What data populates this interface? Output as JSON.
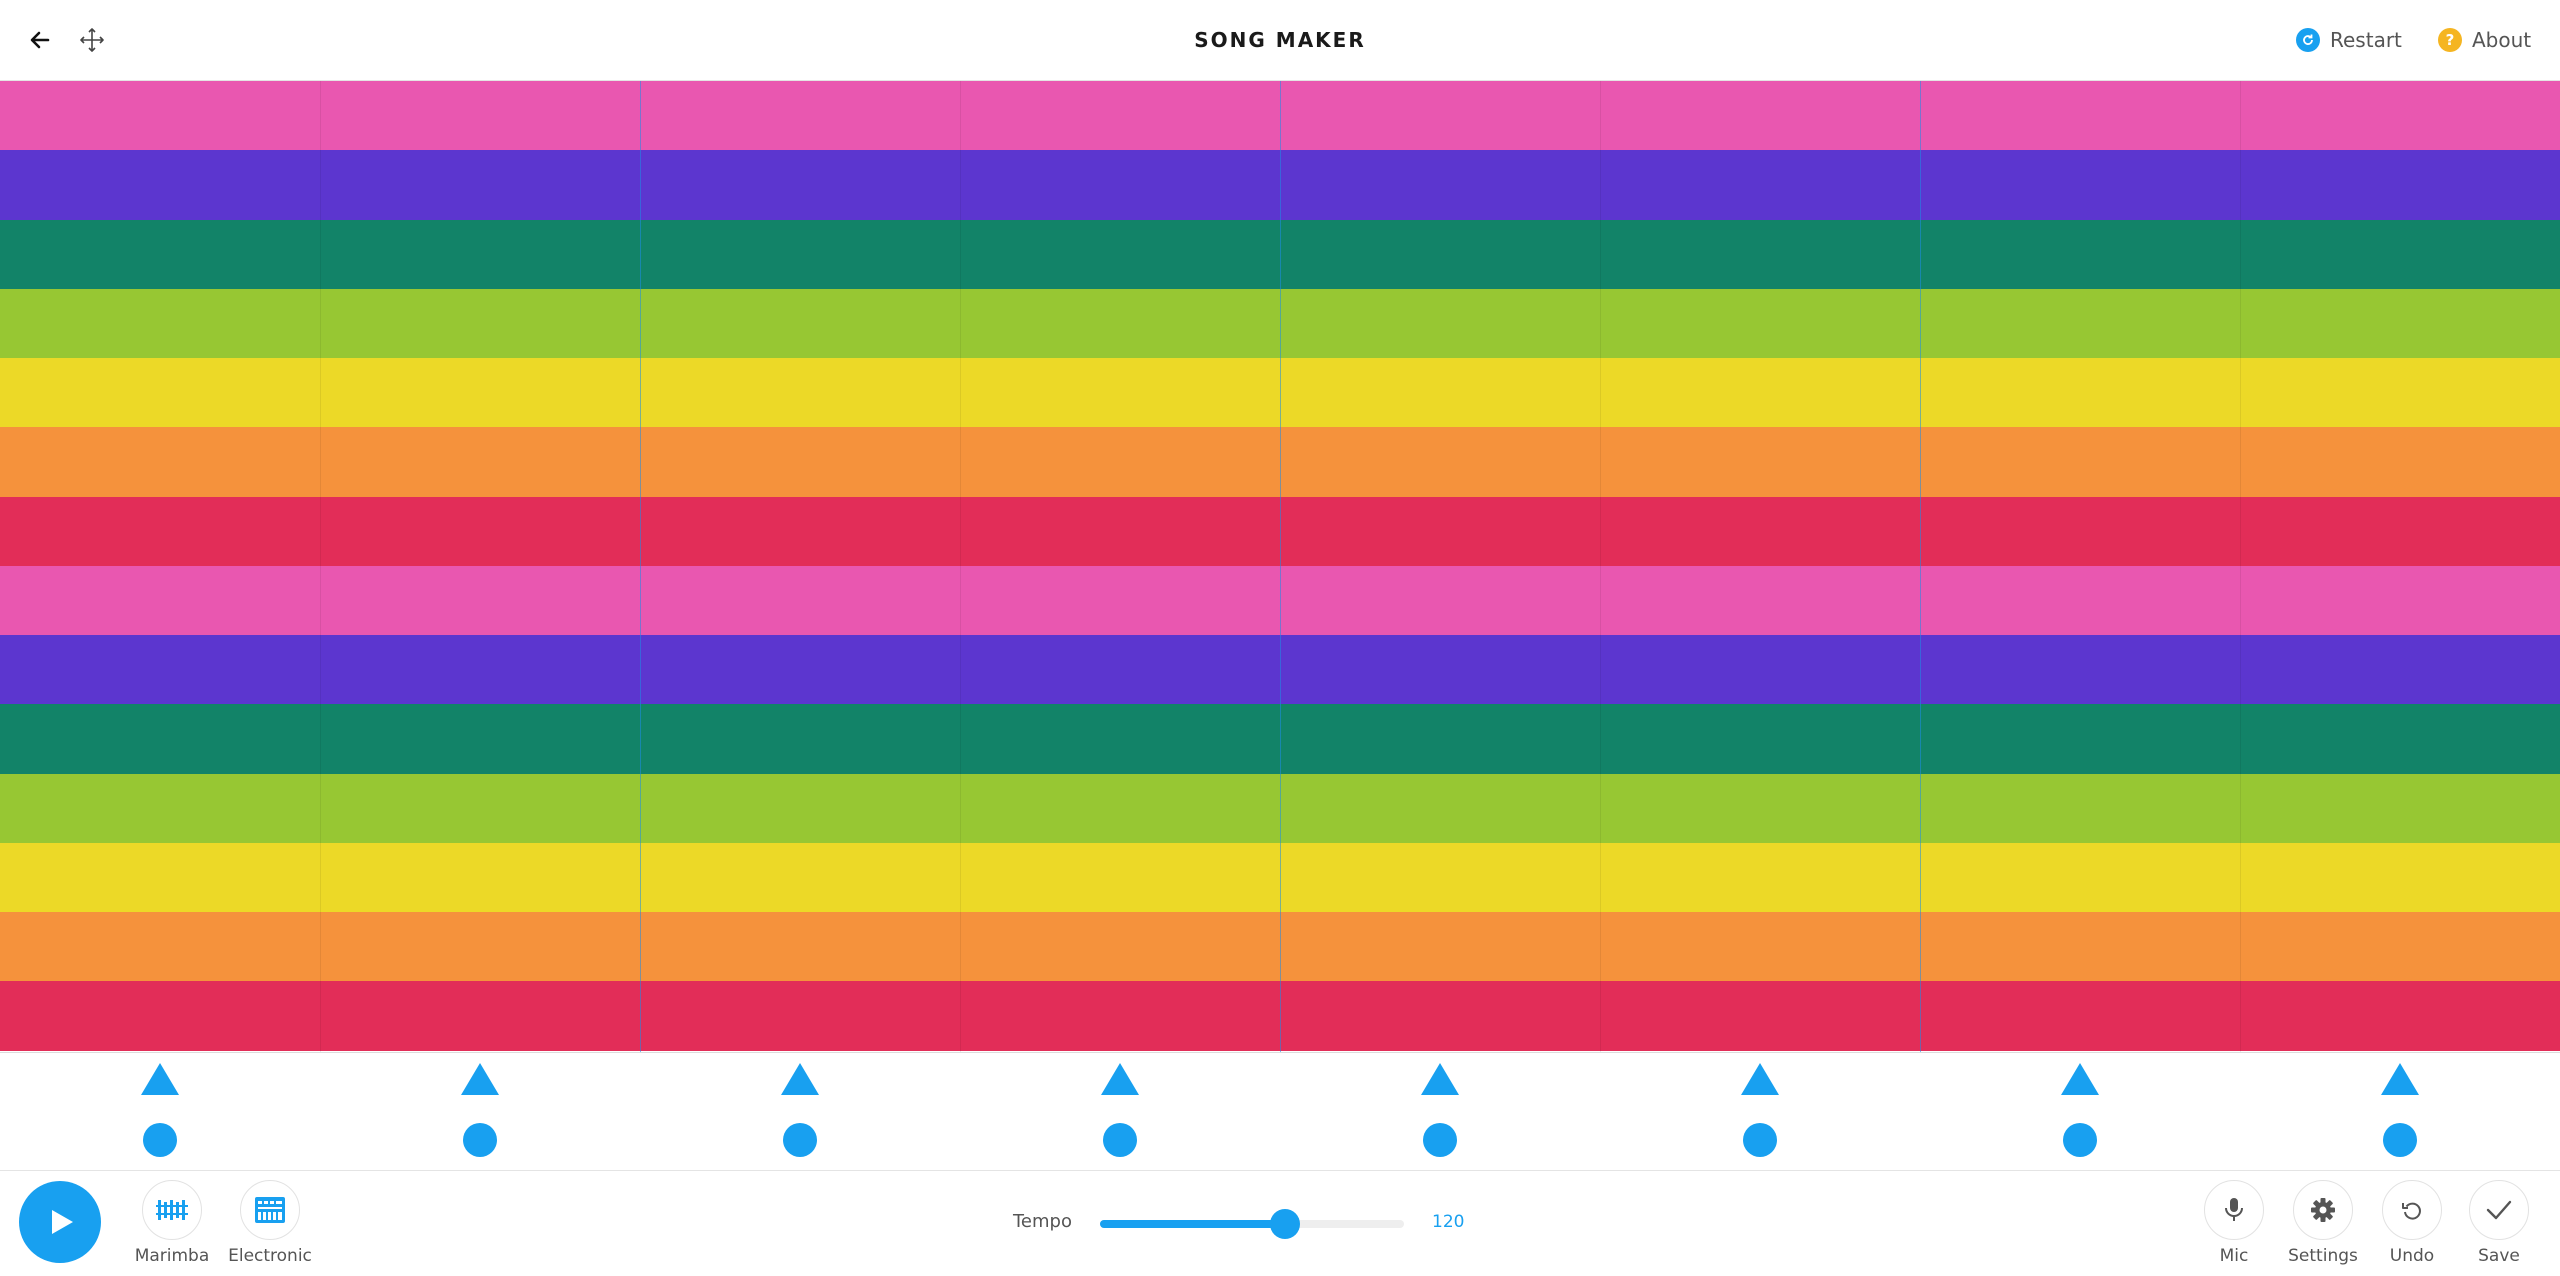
{
  "header": {
    "title": "SONG MAKER",
    "restart_label": "Restart",
    "about_label": "About",
    "back_icon": "arrow-left-icon",
    "move_icon": "move-arrows-icon",
    "restart_color": "#18a0f0",
    "about_color": "#f5b521"
  },
  "grid": {
    "row_colors": [
      "#e957b0",
      "#5c36cf",
      "#128368",
      "#97c733",
      "#ecd927",
      "#f5923c",
      "#e22d58",
      "#e957b0",
      "#5c36cf",
      "#128368",
      "#97c733",
      "#ecd927",
      "#f5923c",
      "#e22d58"
    ],
    "beats": 8,
    "beats_per_bar": 2
  },
  "percussion": {
    "color": "#18a0f0",
    "triangle_icon": "triangle-note-icon",
    "circle_icon": "circle-note-icon"
  },
  "controls": {
    "play_icon": "play-icon",
    "instrument_label": "Marimba",
    "instrument_icon": "marimba-icon",
    "percussion_label": "Electronic",
    "percussion_icon": "electronic-drum-icon",
    "tempo_label": "Tempo",
    "tempo_value": "120",
    "tempo_fraction": 0.61,
    "mic_label": "Mic",
    "settings_label": "Settings",
    "undo_label": "Undo",
    "save_label": "Save"
  }
}
